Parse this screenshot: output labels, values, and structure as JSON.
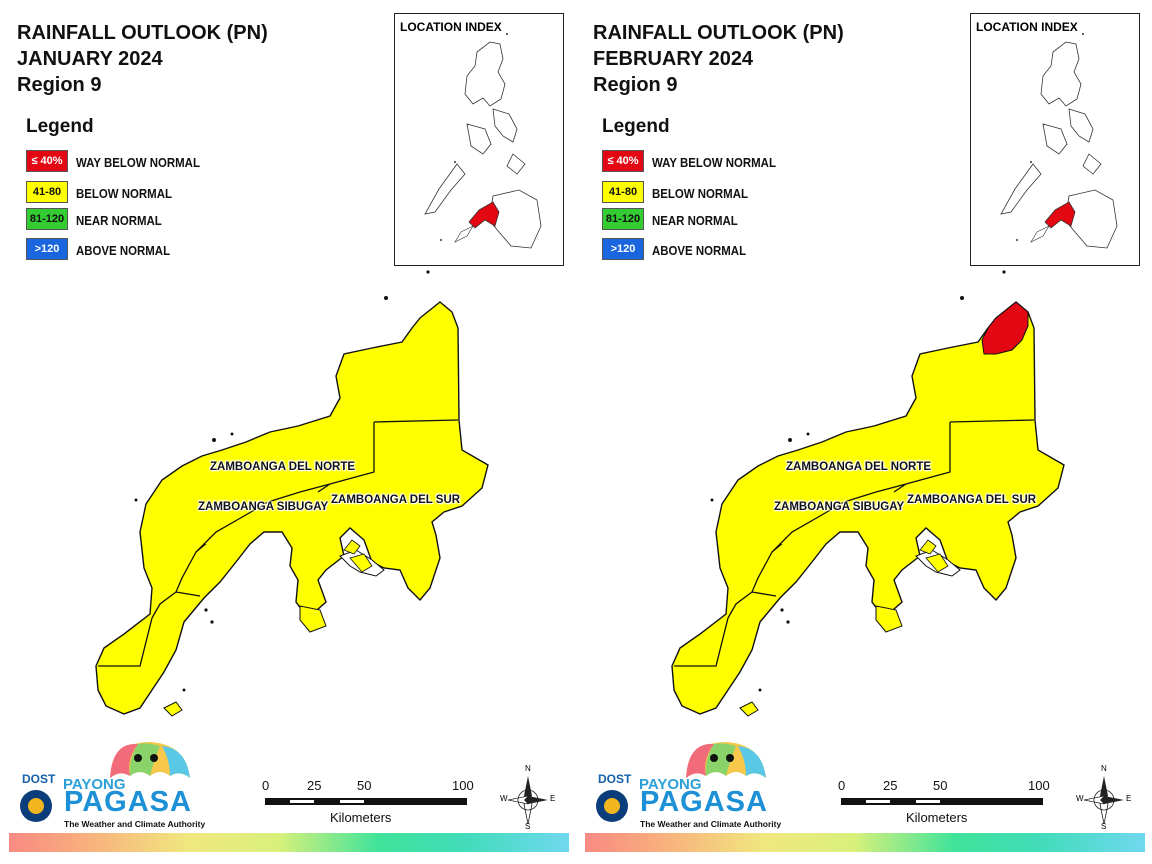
{
  "panels": [
    {
      "id": "january",
      "title": [
        "RAINFALL OUTLOOK (PN)",
        "JANUARY 2024",
        "Region 9"
      ],
      "legend": {
        "heading": "Legend",
        "items": [
          {
            "code": "≤ 40%",
            "label": "WAY BELOW NORMAL",
            "color": "#e30613",
            "text_color": "#ffffff"
          },
          {
            "code": "41-80",
            "label": "BELOW NORMAL",
            "color": "#ffff00",
            "text_color": "#111111"
          },
          {
            "code": "81-120",
            "label": "NEAR NORMAL",
            "color": "#33cc33",
            "text_color": "#111111"
          },
          {
            "code": ">120",
            "label": "ABOVE NORMAL",
            "color": "#1a66e0",
            "text_color": "#ffffff"
          }
        ]
      },
      "inset_label": "LOCATION INDEX",
      "provinces": [
        "ZAMBOANGA DEL NORTE",
        "ZAMBOANGA SIBUGAY",
        "ZAMBOANGA DEL SUR"
      ],
      "way_below_normal_area": "none"
    },
    {
      "id": "february",
      "title": [
        "RAINFALL OUTLOOK (PN)",
        "FEBRUARY 2024",
        "Region 9"
      ],
      "legend": {
        "heading": "Legend",
        "items": [
          {
            "code": "≤ 40%",
            "label": "WAY BELOW NORMAL",
            "color": "#e30613",
            "text_color": "#ffffff"
          },
          {
            "code": "41-80",
            "label": "BELOW NORMAL",
            "color": "#ffff00",
            "text_color": "#111111"
          },
          {
            "code": "81-120",
            "label": "NEAR NORMAL",
            "color": "#33cc33",
            "text_color": "#111111"
          },
          {
            "code": ">120",
            "label": "ABOVE NORMAL",
            "color": "#1a66e0",
            "text_color": "#ffffff"
          }
        ]
      },
      "inset_label": "LOCATION INDEX",
      "provinces": [
        "ZAMBOANGA DEL NORTE",
        "ZAMBOANGA SIBUGAY",
        "ZAMBOANGA DEL SUR"
      ],
      "way_below_normal_area": "northern tip of Zamboanga del Norte"
    }
  ],
  "branding": {
    "dost": "DOST",
    "payong": "PAYONG",
    "pagasa": "PAGASA",
    "tagline": "The Weather and Climate Authority"
  },
  "scale": {
    "ticks": [
      "0",
      "25",
      "50",
      "100"
    ],
    "unit": "Kilometers"
  },
  "compass": {
    "n": "N",
    "s": "S",
    "e": "E",
    "w": "W"
  },
  "colors": {
    "below_normal": "#ffff00",
    "way_below_normal": "#e30613",
    "boundary": "#111111"
  }
}
